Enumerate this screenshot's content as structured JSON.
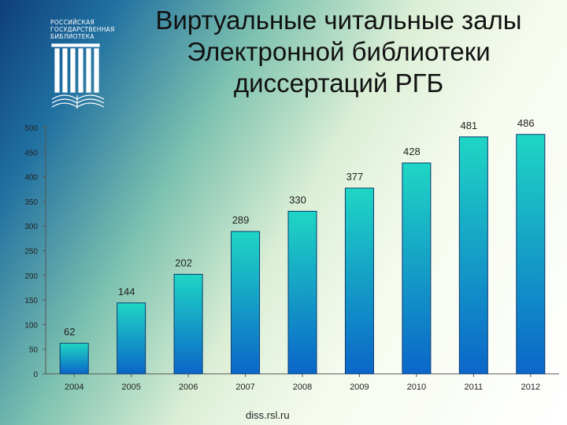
{
  "slide": {
    "title_lines": [
      "Виртуальные читальные залы",
      "Электронной библиотеки",
      "диссертаций РГБ"
    ],
    "footer": "diss.rsl.ru"
  },
  "logo": {
    "lines": [
      "РОССИЙСКАЯ",
      "ГОСУДАРСТВЕННАЯ",
      "БИБЛИОТЕКА"
    ],
    "icon": "library-columns-book-icon",
    "color": "#ffffff"
  },
  "colors": {
    "bar_top": "#1fd6c4",
    "bar_bottom": "#0b66c9",
    "bar_stroke": "#0a3b6e",
    "axis": "#555555",
    "label": "#222222"
  },
  "chart_data": {
    "type": "bar",
    "categories": [
      "2004",
      "2005",
      "2006",
      "2007",
      "2008",
      "2009",
      "2010",
      "2011",
      "2012"
    ],
    "values": [
      62,
      144,
      202,
      289,
      330,
      377,
      428,
      481,
      486
    ],
    "data_labels": [
      "62",
      "144",
      "202",
      "289",
      "330",
      "377",
      "428",
      "481",
      "486"
    ],
    "y_ticks": [
      0,
      50,
      100,
      150,
      200,
      250,
      300,
      350,
      400,
      450,
      500
    ],
    "ylim": [
      0,
      500
    ],
    "grid": false,
    "legend": "none"
  }
}
